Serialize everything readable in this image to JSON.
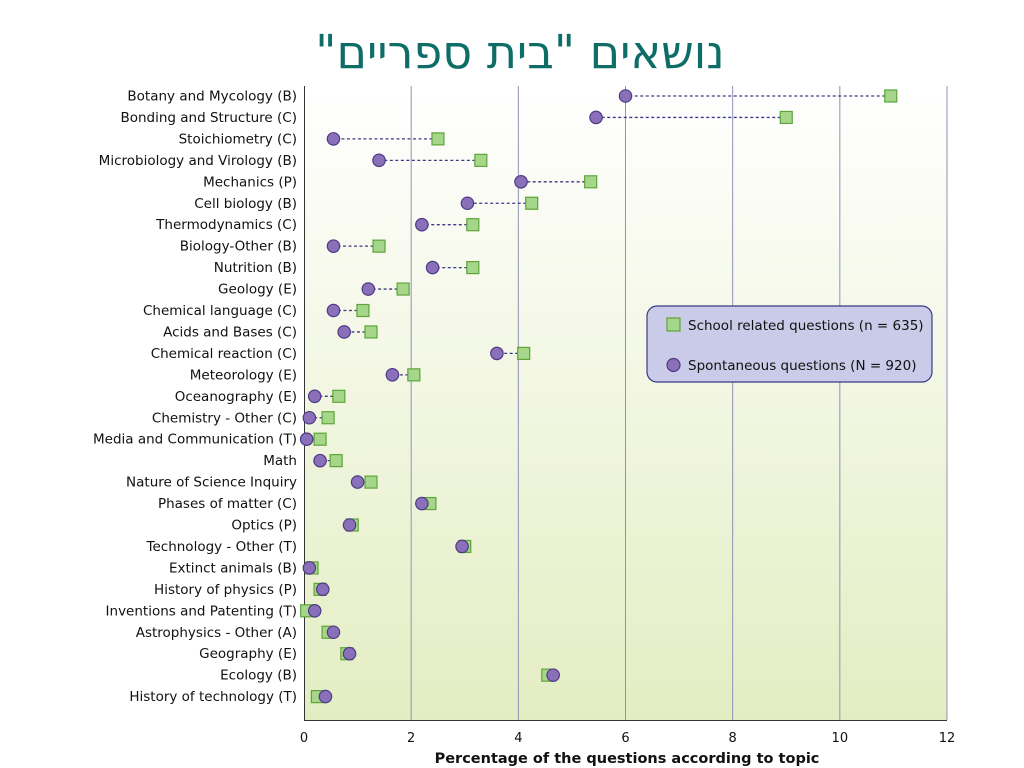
{
  "slide": {
    "title": "נושאים \"בית ספריים\""
  },
  "chart_data": {
    "type": "dot-plot",
    "orientation": "horizontal",
    "xlabel": "Percentage of the questions according to topic",
    "xlim": [
      0,
      12
    ],
    "xticks": [
      0,
      2,
      4,
      6,
      8,
      10,
      12
    ],
    "grid": "vertical lines",
    "legend_position": "right",
    "colors": {
      "school": "#a6d68a",
      "school_stroke": "#5fa43a",
      "spontaneous": "#8a70b8",
      "spontaneous_stroke": "#4e3a86",
      "connector": "#3b3a84",
      "legend_fill": "#c9cbe8",
      "legend_stroke": "#3b3a84",
      "grid": "#8f92b7"
    },
    "series": [
      {
        "key": "school",
        "name": "School related questions (n = 635)",
        "marker": "square"
      },
      {
        "key": "spontaneous",
        "name": "Spontaneous questions (N = 920)",
        "marker": "circle"
      }
    ],
    "categories": [
      "Botany and Mycology (B)",
      "Bonding and Structure (C)",
      "Stoichiometry (C)",
      "Microbiology and Virology (B)",
      "Mechanics (P)",
      "Cell biology (B)",
      "Thermodynamics (C)",
      "Biology-Other (B)",
      "Nutrition (B)",
      "Geology (E)",
      "Chemical language (C)",
      "Acids and Bases (C)",
      "Chemical reaction (C)",
      "Meteorology (E)",
      "Oceanography (E)",
      "Chemistry - Other (C)",
      "Media and Communication (T)",
      "Math",
      "Nature of Science Inquiry",
      "Phases of matter (C)",
      "Optics (P)",
      "Technology - Other (T)",
      "Extinct animals (B)",
      "History of physics (P)",
      "Inventions and Patenting (T)",
      "Astrophysics - Other (A)",
      "Geography (E)",
      "Ecology (B)",
      "History of technology (T)"
    ],
    "school": [
      10.95,
      9.0,
      2.5,
      3.3,
      5.35,
      4.25,
      3.15,
      1.4,
      3.15,
      1.85,
      1.1,
      1.25,
      4.1,
      2.05,
      0.65,
      0.45,
      0.3,
      0.6,
      1.25,
      2.35,
      0.9,
      3.0,
      0.15,
      0.3,
      0.05,
      0.45,
      0.8,
      4.55,
      0.25
    ],
    "spontaneous": [
      6.0,
      5.45,
      0.55,
      1.4,
      4.05,
      3.05,
      2.2,
      0.55,
      2.4,
      1.2,
      0.55,
      0.75,
      3.6,
      1.65,
      0.2,
      0.1,
      0.05,
      0.3,
      1.0,
      2.2,
      0.85,
      2.95,
      0.1,
      0.35,
      0.2,
      0.55,
      0.85,
      4.65,
      0.4
    ]
  }
}
